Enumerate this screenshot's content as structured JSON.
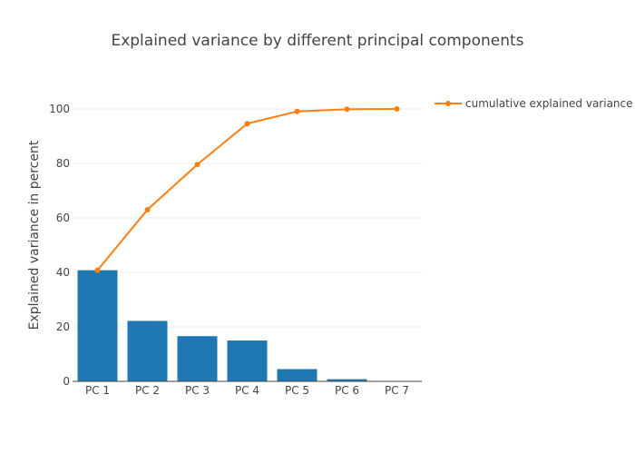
{
  "chart_data": {
    "type": "bar",
    "title": "Explained variance by different principal components",
    "xlabel": "",
    "ylabel": "Explained variance in percent",
    "categories": [
      "PC 1",
      "PC 2",
      "PC 3",
      "PC 4",
      "PC 5",
      "PC 6",
      "PC 7"
    ],
    "ylim": [
      0,
      110
    ],
    "yticks": [
      0,
      20,
      40,
      60,
      80,
      100
    ],
    "grid": true,
    "legend_position": "top-right",
    "series": [
      {
        "type": "bar",
        "values": [
          40.8,
          22.2,
          16.6,
          15.0,
          4.5,
          0.8,
          0.1
        ],
        "color": "#1f77b4"
      },
      {
        "type": "line",
        "name": "cumulative explained variance",
        "values": [
          40.8,
          63.0,
          79.6,
          94.6,
          99.1,
          99.9,
          100.0
        ],
        "color": "#ff7f0e"
      }
    ]
  }
}
